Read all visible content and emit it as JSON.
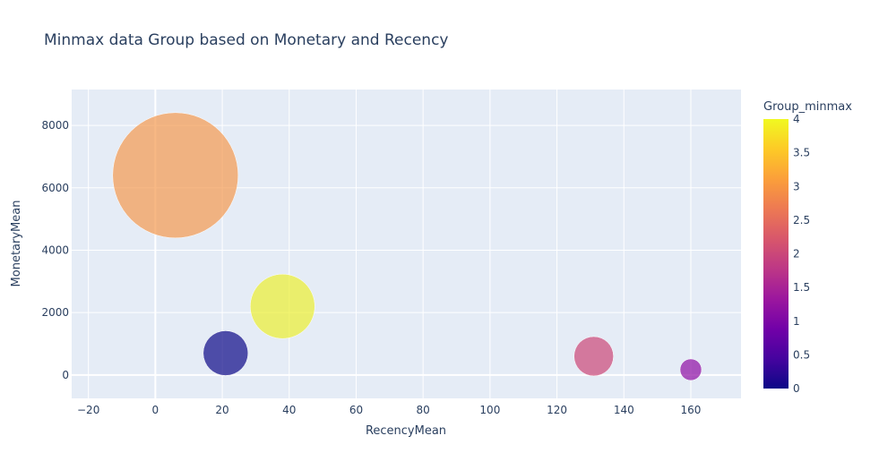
{
  "chart_data": {
    "type": "scatter",
    "title": "Minmax data Group based on Monetary and Recency",
    "xlabel": "RecencyMean",
    "ylabel": "MonetaryMean",
    "xlim": [
      -25,
      175
    ],
    "ylim": [
      -750,
      9150
    ],
    "x_ticks": [
      -20,
      0,
      20,
      40,
      60,
      80,
      100,
      120,
      140,
      160
    ],
    "y_ticks": [
      0,
      2000,
      4000,
      6000,
      8000
    ],
    "grid": true,
    "colorbar": {
      "title": "Group_minmax",
      "range": [
        0,
        4
      ],
      "ticks": [
        "0",
        "0.5",
        "1",
        "1.5",
        "2",
        "2.5",
        "3",
        "3.5",
        "4"
      ],
      "colorscale": [
        "#0d0887",
        "#46039f",
        "#7201a8",
        "#9c179e",
        "#bd3786",
        "#d8576b",
        "#ed7953",
        "#fb9f3a",
        "#fdca26",
        "#f0f921"
      ]
    },
    "points": [
      {
        "group": 3,
        "x": 6,
        "y": 6400,
        "size": 70,
        "color": "#f59a50"
      },
      {
        "group": 4,
        "x": 38,
        "y": 2200,
        "size": 36,
        "color": "#edf032"
      },
      {
        "group": 0,
        "x": 21,
        "y": 700,
        "size": 25,
        "color": "#0d0887"
      },
      {
        "group": 2,
        "x": 131,
        "y": 600,
        "size": 22,
        "color": "#cc4778"
      },
      {
        "group": 1,
        "x": 160,
        "y": 170,
        "size": 12,
        "color": "#8f0da4"
      }
    ]
  }
}
